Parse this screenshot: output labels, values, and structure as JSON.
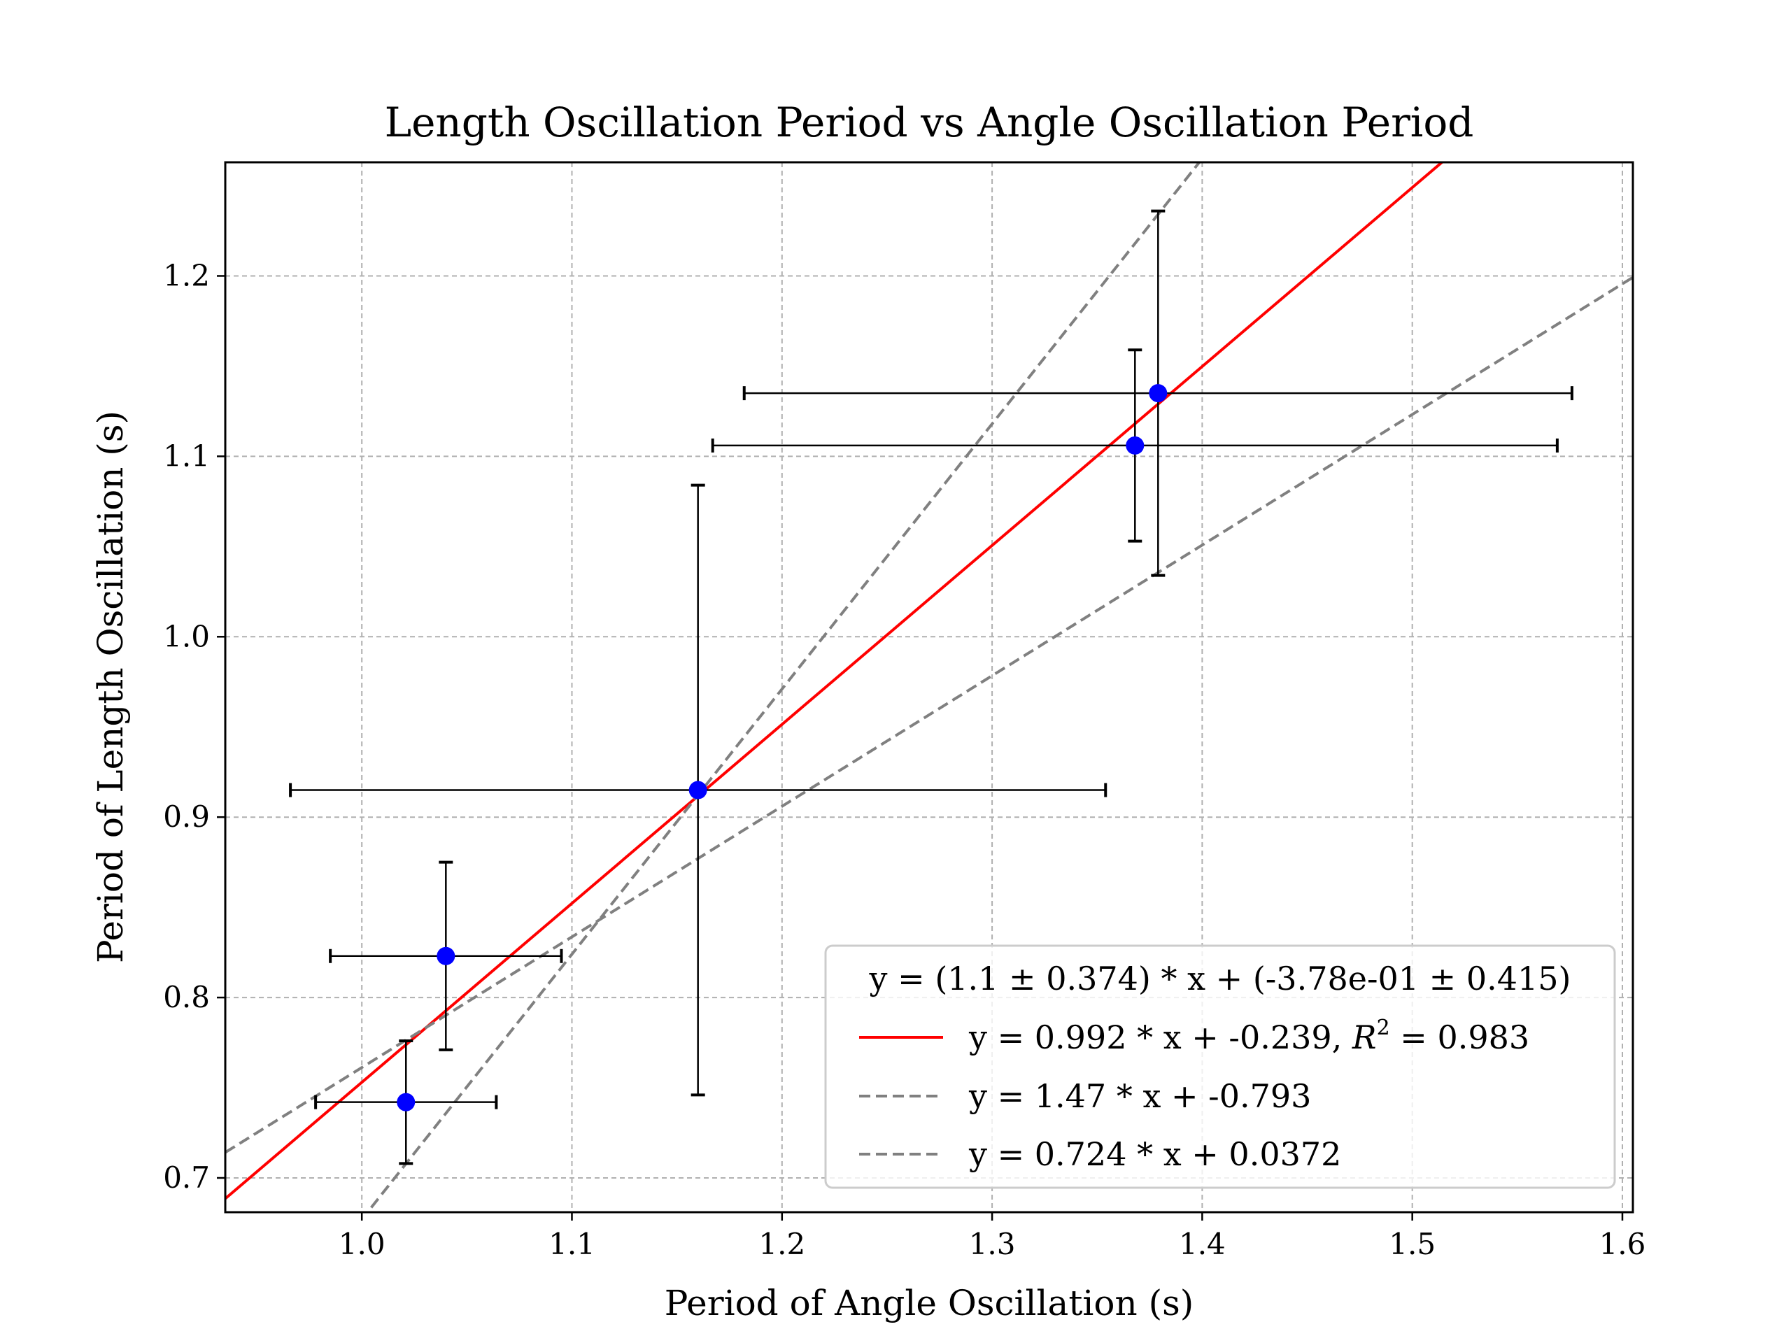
{
  "chart_data": {
    "type": "scatter",
    "title": "Length Oscillation Period vs Angle Oscillation Period",
    "xlabel": "Period of Angle Oscillation (s)",
    "ylabel": "Period of Length Oscillation (s)",
    "xlim": [
      0.935,
      1.605
    ],
    "ylim": [
      0.681,
      1.263
    ],
    "xticks": [
      1.0,
      1.1,
      1.2,
      1.3,
      1.4,
      1.5,
      1.6
    ],
    "xtick_labels": [
      "1.0",
      "1.1",
      "1.2",
      "1.3",
      "1.4",
      "1.5",
      "1.6"
    ],
    "yticks": [
      0.7,
      0.8,
      0.9,
      1.0,
      1.1,
      1.2
    ],
    "ytick_labels": [
      "0.7",
      "0.8",
      "0.9",
      "1.0",
      "1.1",
      "1.2"
    ],
    "grid": true,
    "legend_position": "lower-right",
    "legend_header": "y = (1.1 ± 0.374) * x + (-3.78e-01 ± 0.415)",
    "points": [
      {
        "x": 1.021,
        "y": 0.742,
        "xerr": 0.043,
        "yerr": 0.034
      },
      {
        "x": 1.04,
        "y": 0.823,
        "xerr": 0.055,
        "yerr": 0.052
      },
      {
        "x": 1.16,
        "y": 0.915,
        "xerr": 0.194,
        "yerr": 0.169
      },
      {
        "x": 1.368,
        "y": 1.106,
        "xerr": 0.201,
        "yerr": 0.053
      },
      {
        "x": 1.379,
        "y": 1.135,
        "xerr": 0.197,
        "yerr": 0.101
      }
    ],
    "lines": [
      {
        "label": "y = 0.992 * x + -0.239, ",
        "r2_label": "R",
        "r2_sup": "2",
        "r2_value": " = 0.983",
        "slope": 0.992,
        "intercept": -0.239,
        "color": "#ff0000",
        "style": "solid"
      },
      {
        "label": "y = 1.47 * x + -0.793",
        "slope": 1.47,
        "intercept": -0.793,
        "color": "#808080",
        "style": "dashed"
      },
      {
        "label": "y = 0.724 * x + 0.0372",
        "slope": 0.724,
        "intercept": 0.0372,
        "color": "#808080",
        "style": "dashed"
      }
    ],
    "marker_color": "#0000ff",
    "errorbar_color": "#000000"
  }
}
